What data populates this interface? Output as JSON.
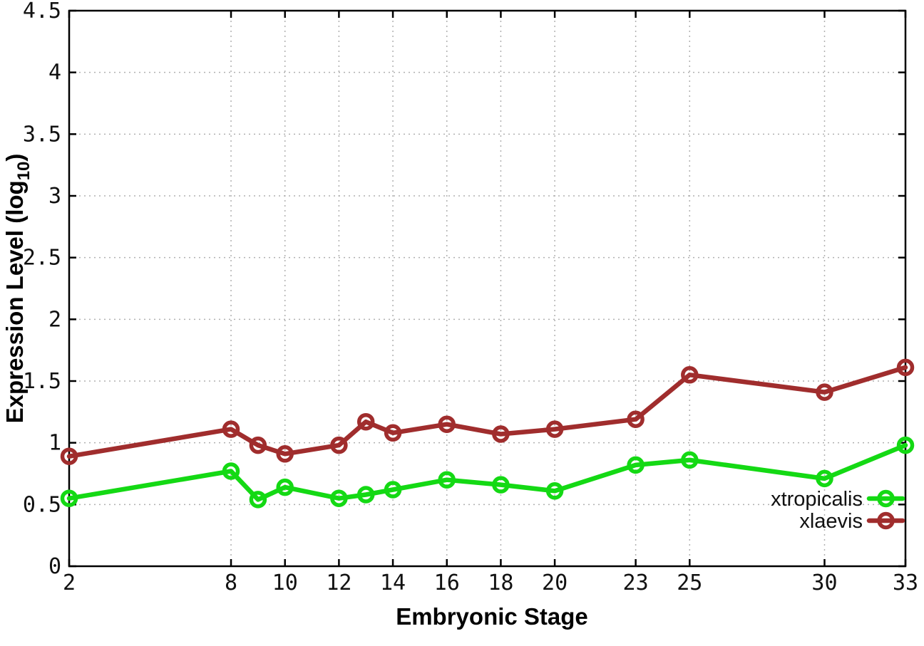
{
  "chart_data": {
    "type": "line",
    "title": "",
    "xlabel": "Embryonic Stage",
    "ylabel": "Expression Level (log10)",
    "xlim": [
      2,
      33
    ],
    "ylim": [
      0,
      4.5
    ],
    "grid": true,
    "legend_position": "inside-bottom-right",
    "x": [
      2,
      8,
      9,
      10,
      12,
      13,
      14,
      16,
      18,
      20,
      23,
      25,
      30,
      33
    ],
    "x_ticks": [
      2,
      8,
      10,
      12,
      14,
      16,
      18,
      20,
      23,
      25,
      30,
      33
    ],
    "x_tick_labels": [
      "2",
      "8",
      "10",
      "12",
      "14",
      "16",
      "18",
      "20",
      "23",
      "25",
      "30",
      "33"
    ],
    "y_ticks": [
      0,
      0.5,
      1,
      1.5,
      2,
      2.5,
      3,
      3.5,
      4,
      4.5
    ],
    "y_tick_labels": [
      "0",
      "0.5",
      "1",
      "1.5",
      "2",
      "2.5",
      "3",
      "3.5",
      "4",
      "4.5"
    ],
    "series": [
      {
        "name": "xtropicalis",
        "color": "#14d914",
        "marker": "open-circle",
        "values": [
          0.55,
          0.77,
          0.54,
          0.64,
          0.55,
          0.58,
          0.62,
          0.7,
          0.66,
          0.61,
          0.82,
          0.86,
          0.71,
          0.98
        ]
      },
      {
        "name": "xlaevis",
        "color": "#a02d2d",
        "marker": "open-circle",
        "values": [
          0.89,
          1.11,
          0.98,
          0.91,
          0.98,
          1.17,
          1.08,
          1.15,
          1.07,
          1.11,
          1.19,
          1.55,
          1.41,
          1.61
        ]
      }
    ]
  },
  "labels": {
    "ylabel_prefix": "Expression Level (log",
    "ylabel_sub": "10",
    "ylabel_suffix": ")"
  },
  "colors": {
    "background": "#ffffff",
    "grid": "#b0b0b0",
    "axis": "#000000",
    "xtropicalis": "#14d914",
    "xlaevis": "#a02d2d"
  }
}
